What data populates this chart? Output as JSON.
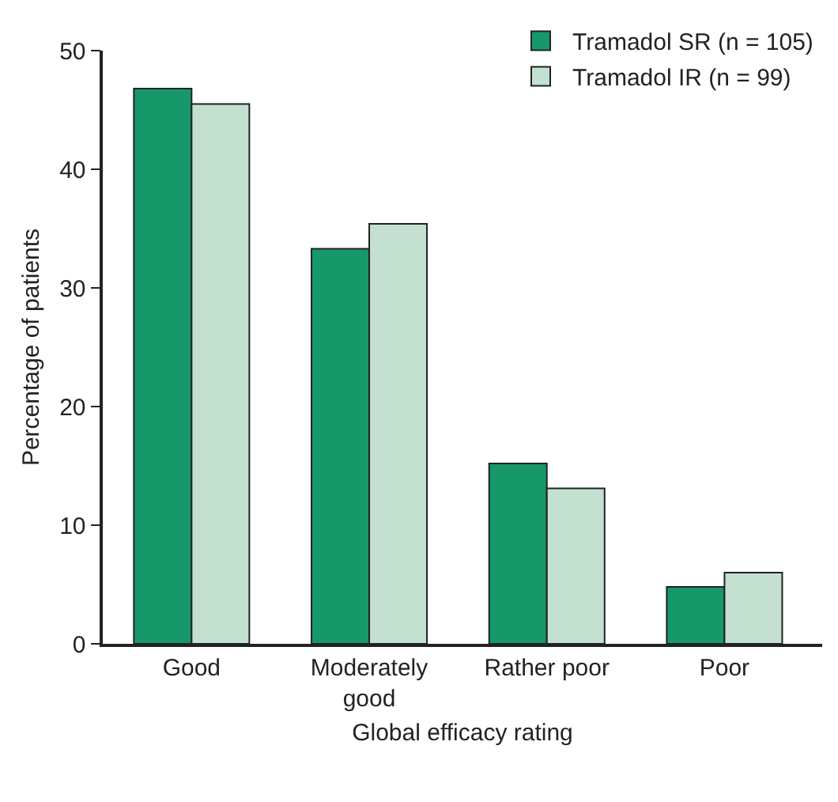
{
  "chart_data": {
    "type": "bar",
    "xlabel": "Global efficacy rating",
    "ylabel": "Percentage of patients",
    "categories": [
      "Good",
      "Moderately good",
      "Rather poor",
      "Poor"
    ],
    "series": [
      {
        "name": "Tramadol SR (n = 105)",
        "color": "#17986a",
        "values": [
          46.8,
          33.3,
          15.2,
          4.8
        ]
      },
      {
        "name": "Tramadol IR (n = 99)",
        "color": "#c3e0d0",
        "values": [
          45.5,
          35.4,
          13.1,
          6.0
        ]
      }
    ],
    "ylim": [
      0,
      50
    ],
    "yticks": [
      0,
      10,
      20,
      30,
      40,
      50
    ],
    "grid": false,
    "legend": "top right"
  }
}
